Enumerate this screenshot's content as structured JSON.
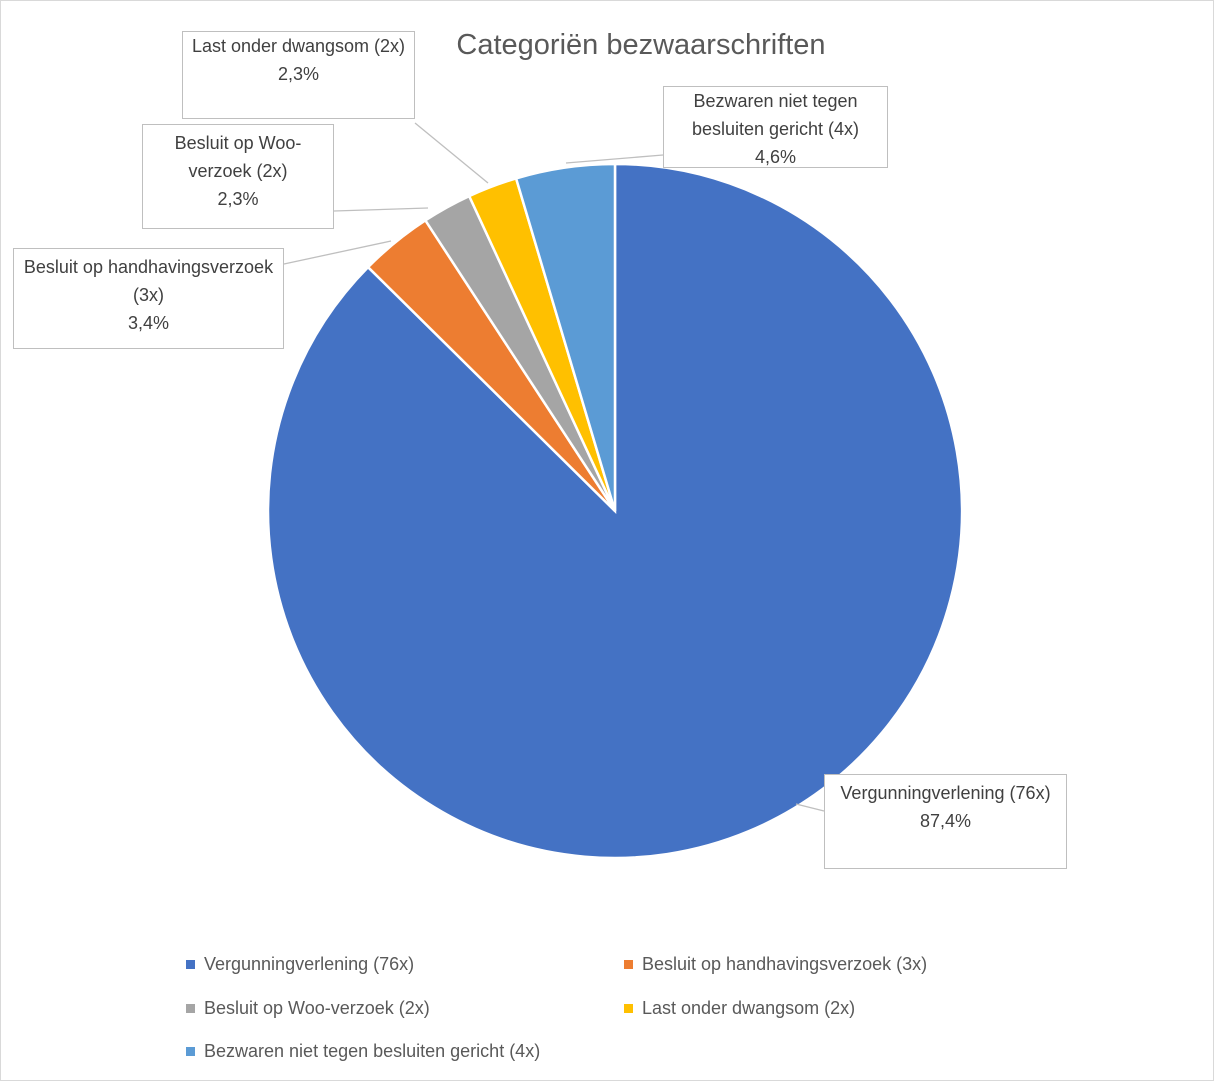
{
  "chart_data": {
    "type": "pie",
    "title": "Categoriën bezwaarschriften",
    "categories": [
      "Vergunningverlening (76x)",
      "Besluit op handhavingsverzoek (3x)",
      "Besluit op Woo-verzoek (2x)",
      "Last onder dwangsom (2x)",
      "Bezwaren niet tegen besluiten gericht (4x)"
    ],
    "values": [
      87.4,
      3.4,
      2.3,
      2.3,
      4.6
    ],
    "value_labels": [
      "87,4%",
      "3,4%",
      "2,3%",
      "2,3%",
      "4,6%"
    ],
    "colors": [
      "#4472c4",
      "#ed7d31",
      "#a5a5a5",
      "#ffc000",
      "#5b9bd5"
    ],
    "legend": "bottom"
  }
}
